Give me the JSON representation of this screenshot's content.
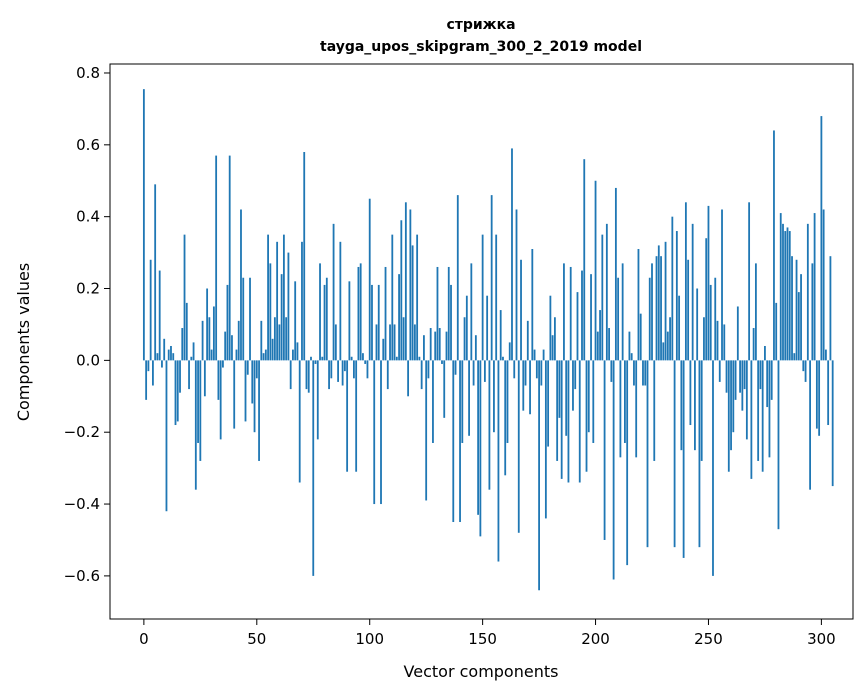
{
  "chart_data": {
    "type": "bar",
    "title": "стрижка",
    "subtitle": "tayga_upos_skipgram_300_2_2019 model",
    "xlabel": "Vector components",
    "ylabel": "Components values",
    "xlim": [
      -15,
      314
    ],
    "ylim": [
      -0.72,
      0.825
    ],
    "xticks": [
      0,
      50,
      100,
      150,
      200,
      250,
      300
    ],
    "xtick_labels": [
      "0",
      "50",
      "100",
      "150",
      "200",
      "250",
      "300"
    ],
    "yticks": [
      -0.6,
      -0.4,
      -0.2,
      0.0,
      0.2,
      0.4,
      0.6,
      0.8
    ],
    "ytick_labels": [
      "−0.6",
      "−0.4",
      "−0.2",
      "0.0",
      "0.2",
      "0.4",
      "0.6",
      "0.8"
    ],
    "bar_color": "#1f77b4",
    "x_start": 0,
    "values": [
      0.755,
      -0.11,
      -0.03,
      0.28,
      -0.07,
      0.49,
      0.02,
      0.25,
      -0.02,
      0.06,
      -0.42,
      0.03,
      0.04,
      0.02,
      -0.18,
      -0.17,
      -0.09,
      0.09,
      0.35,
      0.16,
      -0.08,
      0.01,
      0.05,
      -0.36,
      -0.23,
      -0.28,
      0.11,
      -0.1,
      0.2,
      0.12,
      0.03,
      0.15,
      0.57,
      -0.11,
      -0.22,
      -0.02,
      0.08,
      0.21,
      0.57,
      0.07,
      -0.19,
      0.03,
      0.11,
      0.42,
      0.23,
      -0.17,
      -0.04,
      0.23,
      -0.12,
      -0.2,
      -0.05,
      -0.28,
      0.11,
      0.02,
      0.03,
      0.35,
      0.27,
      0.06,
      0.12,
      0.33,
      0.1,
      0.24,
      0.35,
      0.12,
      0.3,
      -0.08,
      0.03,
      0.22,
      0.05,
      -0.34,
      0.33,
      0.58,
      -0.08,
      -0.09,
      0.01,
      -0.6,
      -0.01,
      -0.22,
      0.27,
      0.01,
      0.21,
      0.23,
      -0.08,
      -0.05,
      0.38,
      0.1,
      -0.06,
      0.33,
      -0.07,
      -0.03,
      -0.31,
      0.22,
      0.01,
      -0.05,
      -0.31,
      0.26,
      0.27,
      0.02,
      -0.01,
      -0.05,
      0.45,
      0.21,
      -0.4,
      0.1,
      0.21,
      -0.4,
      0.06,
      0.26,
      -0.08,
      0.1,
      0.35,
      0.1,
      0.01,
      0.24,
      0.39,
      0.12,
      0.44,
      -0.1,
      0.42,
      0.32,
      0.1,
      0.35,
      0.01,
      -0.08,
      0.07,
      -0.39,
      -0.05,
      0.09,
      -0.23,
      0.08,
      0.26,
      0.09,
      -0.01,
      -0.16,
      0.08,
      0.26,
      0.21,
      -0.45,
      -0.04,
      0.46,
      -0.45,
      -0.23,
      0.12,
      0.18,
      -0.21,
      0.27,
      -0.07,
      0.07,
      -0.43,
      -0.49,
      0.35,
      -0.06,
      0.18,
      -0.36,
      0.46,
      -0.2,
      0.35,
      -0.56,
      0.14,
      0.01,
      -0.32,
      -0.23,
      0.05,
      0.59,
      -0.05,
      0.42,
      -0.48,
      0.28,
      -0.14,
      -0.07,
      0.11,
      -0.15,
      0.31,
      0.03,
      -0.05,
      -0.64,
      -0.07,
      0.03,
      -0.44,
      -0.24,
      0.18,
      0.07,
      0.12,
      -0.28,
      -0.16,
      -0.33,
      0.27,
      -0.21,
      -0.34,
      0.26,
      -0.14,
      -0.08,
      0.19,
      -0.34,
      0.25,
      0.56,
      -0.31,
      -0.2,
      0.24,
      -0.23,
      0.5,
      0.08,
      0.14,
      0.35,
      -0.5,
      0.38,
      0.09,
      -0.06,
      -0.61,
      0.48,
      0.23,
      -0.27,
      0.27,
      -0.23,
      -0.57,
      0.08,
      0.02,
      -0.07,
      -0.27,
      0.31,
      0.13,
      -0.07,
      -0.07,
      -0.52,
      0.23,
      0.27,
      -0.28,
      0.29,
      0.32,
      0.29,
      0.05,
      0.33,
      0.08,
      0.12,
      0.4,
      -0.52,
      0.36,
      0.18,
      -0.25,
      -0.55,
      0.44,
      0.28,
      -0.18,
      0.38,
      -0.25,
      0.2,
      -0.52,
      -0.28,
      0.12,
      0.34,
      0.43,
      0.21,
      -0.6,
      0.23,
      0.11,
      -0.06,
      0.42,
      0.1,
      -0.09,
      -0.31,
      -0.25,
      -0.2,
      -0.11,
      0.15,
      -0.09,
      -0.14,
      -0.08,
      -0.22,
      0.44,
      -0.33,
      0.09,
      0.27,
      -0.28,
      -0.08,
      -0.31,
      0.04,
      -0.13,
      -0.27,
      -0.11,
      0.64,
      0.16,
      -0.47,
      0.41,
      0.38,
      0.36,
      0.37,
      0.36,
      0.29,
      0.02,
      0.28,
      0.19,
      0.24,
      -0.03,
      -0.06,
      0.38,
      -0.36,
      0.27,
      0.41,
      -0.19,
      -0.21,
      0.68,
      0.42,
      0.03,
      -0.18,
      0.29,
      -0.35
    ]
  }
}
